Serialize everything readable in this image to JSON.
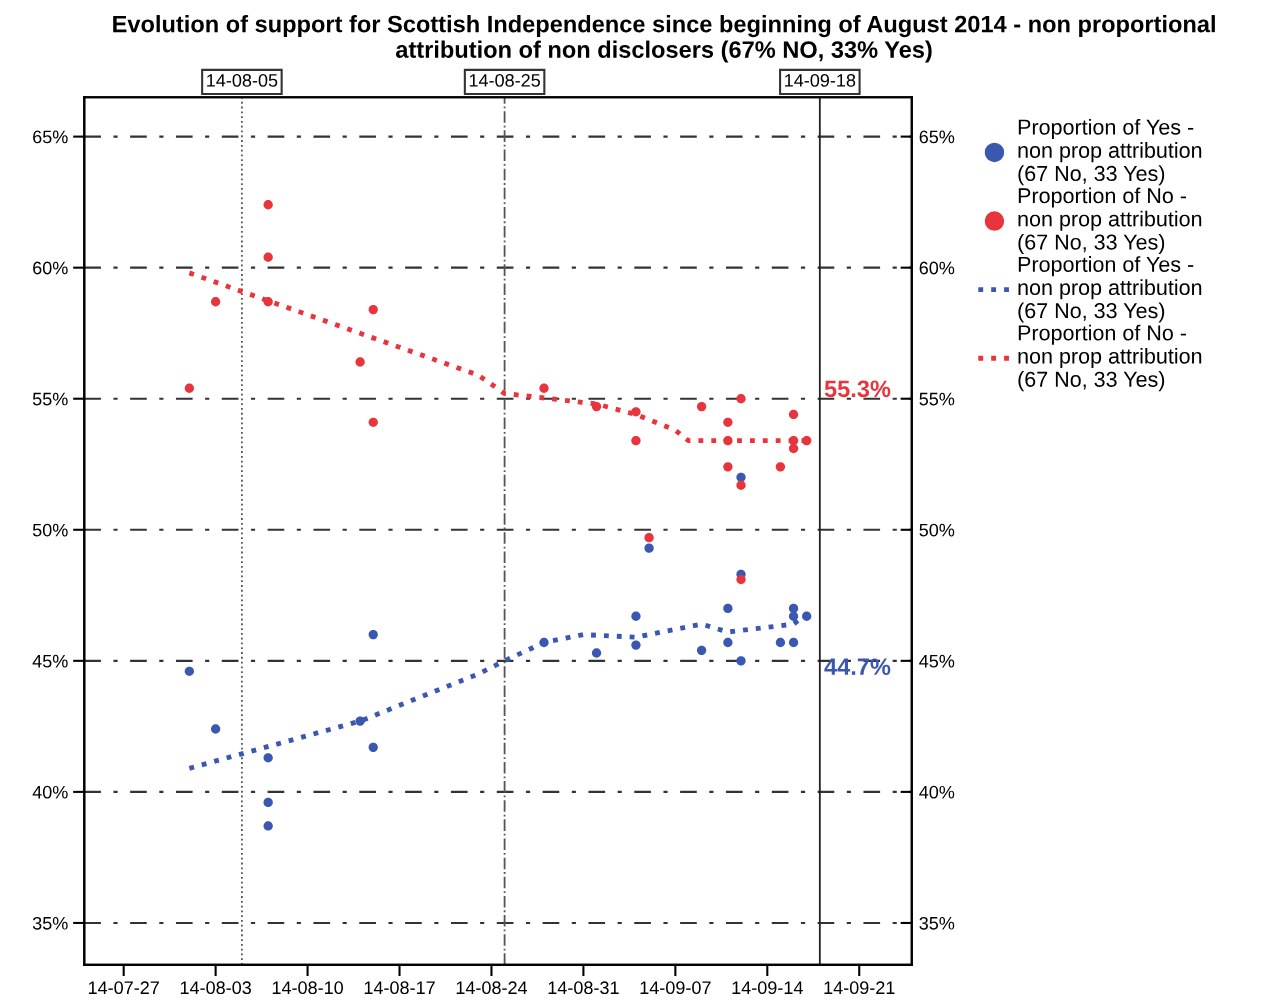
{
  "chart_data": {
    "type": "scatter",
    "title": "Evolution of support for Scottish Independence since beginning of August 2014 - non proportional attribution of non disclosers (67% NO, 33% Yes)",
    "series": [
      {
        "name": "Proportion of Yes - non prop attribution (67 No, 33 Yes)",
        "marker": "circle",
        "color": "#3a58b0",
        "x": [
          "2014-08-01",
          "2014-08-03",
          "2014-08-07",
          "2014-08-07",
          "2014-08-07",
          "2014-08-14",
          "2014-08-15",
          "2014-08-15",
          "2014-08-28",
          "2014-09-01",
          "2014-09-04",
          "2014-09-04",
          "2014-09-05",
          "2014-09-09",
          "2014-09-11",
          "2014-09-11",
          "2014-09-12",
          "2014-09-12",
          "2014-09-12",
          "2014-09-15",
          "2014-09-16",
          "2014-09-16",
          "2014-09-16",
          "2014-09-17"
        ],
        "values": [
          44.6,
          42.4,
          41.3,
          39.6,
          38.7,
          42.7,
          46.0,
          41.7,
          45.7,
          45.3,
          46.7,
          45.6,
          49.3,
          45.4,
          47.0,
          45.7,
          52.0,
          48.3,
          45.0,
          45.7,
          47.0,
          46.7,
          45.7,
          46.7
        ]
      },
      {
        "name": "Proportion of No - non prop attribution (67 No, 33 Yes)",
        "marker": "circle",
        "color": "#e8343c",
        "x": [
          "2014-08-01",
          "2014-08-03",
          "2014-08-07",
          "2014-08-07",
          "2014-08-07",
          "2014-08-14",
          "2014-08-15",
          "2014-08-15",
          "2014-08-28",
          "2014-09-01",
          "2014-09-04",
          "2014-09-04",
          "2014-09-05",
          "2014-09-09",
          "2014-09-11",
          "2014-09-11",
          "2014-09-11",
          "2014-09-12",
          "2014-09-12",
          "2014-09-12",
          "2014-09-15",
          "2014-09-16",
          "2014-09-16",
          "2014-09-16",
          "2014-09-17"
        ],
        "values": [
          55.4,
          58.7,
          62.4,
          60.4,
          58.7,
          56.4,
          58.4,
          54.1,
          55.4,
          54.7,
          54.5,
          53.4,
          49.7,
          54.7,
          54.1,
          53.4,
          52.4,
          55.0,
          51.7,
          48.1,
          52.4,
          54.4,
          53.4,
          53.1,
          53.4
        ]
      },
      {
        "name": "Proportion of Yes - non prop attribution (67 No, 33 Yes)",
        "type": "line",
        "line_style": "dotted",
        "color": "#3a58b0",
        "x": [
          "2014-08-01",
          "2014-08-14",
          "2014-08-23",
          "2014-08-25",
          "2014-08-28",
          "2014-08-31",
          "2014-09-04",
          "2014-09-09",
          "2014-09-11",
          "2014-09-16",
          "2014-09-17"
        ],
        "values": [
          40.9,
          42.7,
          44.5,
          45.0,
          45.7,
          46.0,
          45.9,
          46.4,
          46.1,
          46.4,
          46.8
        ]
      },
      {
        "name": "Proportion of No - non prop attribution (67 No, 33 Yes)",
        "type": "line",
        "line_style": "dotted",
        "color": "#e8343c",
        "x": [
          "2014-08-01",
          "2014-08-23",
          "2014-08-25",
          "2014-09-01",
          "2014-09-04",
          "2014-09-07",
          "2014-09-08",
          "2014-09-17"
        ],
        "values": [
          59.8,
          55.9,
          55.2,
          54.8,
          54.4,
          53.8,
          53.4,
          53.4
        ]
      }
    ],
    "annotations": [
      {
        "text": "55.3%",
        "x": "2014-09-18",
        "y": 55.3
      },
      {
        "text": "44.7%",
        "x": "2014-09-18",
        "y": 44.7
      }
    ],
    "ref_lines": [
      {
        "axis": "x",
        "value": "2014-08-05",
        "label": "14-08-05",
        "line_style": "dotted",
        "color": "#555555"
      },
      {
        "axis": "x",
        "value": "2014-08-25",
        "label": "14-08-25",
        "line_style": "dashdot",
        "color": "#555555"
      },
      {
        "axis": "x",
        "value": "2014-09-18",
        "label": "14-09-18",
        "line_style": "solid",
        "color": "#222222"
      }
    ],
    "xlim": [
      "2014-07-24",
      "2014-09-25"
    ],
    "xticks": [
      {
        "value": "2014-07-27",
        "label": "14-07-27"
      },
      {
        "value": "2014-08-03",
        "label": "14-08-03"
      },
      {
        "value": "2014-08-10",
        "label": "14-08-10"
      },
      {
        "value": "2014-08-17",
        "label": "14-08-17"
      },
      {
        "value": "2014-08-24",
        "label": "14-08-24"
      },
      {
        "value": "2014-08-31",
        "label": "14-08-31"
      },
      {
        "value": "2014-09-07",
        "label": "14-09-07"
      },
      {
        "value": "2014-09-14",
        "label": "14-09-14"
      },
      {
        "value": "2014-09-21",
        "label": "14-09-21"
      }
    ],
    "ylim": [
      33.4,
      66.5
    ],
    "yticks": [
      {
        "value": 35,
        "label": "35%"
      },
      {
        "value": 40,
        "label": "40%"
      },
      {
        "value": 45,
        "label": "45%"
      },
      {
        "value": 50,
        "label": "50%"
      },
      {
        "value": 55,
        "label": "55%"
      },
      {
        "value": 60,
        "label": "60%"
      },
      {
        "value": 65,
        "label": "65%"
      }
    ],
    "y2lim": [
      33.4,
      66.5
    ],
    "y2ticks": [
      {
        "value": 35,
        "label": "35%"
      },
      {
        "value": 40,
        "label": "40%"
      },
      {
        "value": 45,
        "label": "45%"
      },
      {
        "value": 50,
        "label": "50%"
      },
      {
        "value": 55,
        "label": "55%"
      },
      {
        "value": 60,
        "label": "60%"
      },
      {
        "value": 65,
        "label": "65%"
      }
    ],
    "grid": "y",
    "legend": "right"
  }
}
